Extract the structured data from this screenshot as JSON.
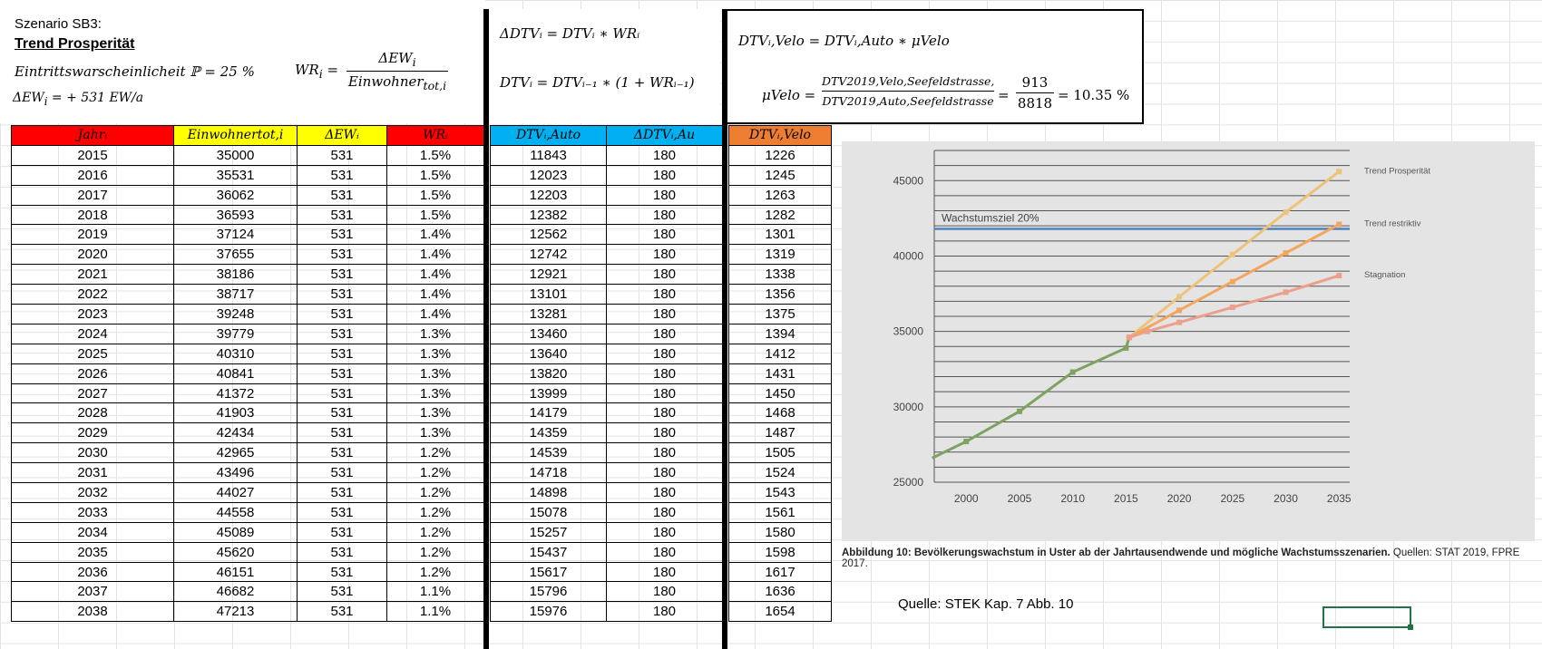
{
  "header": {
    "scenario": "Szenario SB3:",
    "title": "Trend Prosperität",
    "probability_text": "Eintrittswarscheinlicheit ℙ = 25 %",
    "delta_ew": "ΔEW",
    "delta_ew_sub": "i",
    "delta_ew_value": "= + 531 EW/a",
    "wr_lhs": "WR",
    "wr_lhs_sub": "i",
    "wr_num": "ΔEW",
    "wr_num_sub": "i",
    "wr_den": "Einwohner",
    "wr_den_sub": "tot,i"
  },
  "formula_mid": {
    "line1": "ΔDTVᵢ = DTVᵢ ∗ WRᵢ",
    "line2": "DTVᵢ = DTVᵢ₋₁ ∗ (1 + WRᵢ₋₁)"
  },
  "formula_box": {
    "line1": "DTVᵢ,Velo = DTVᵢ,Auto ∗ μVelo",
    "mu": "μVelo =",
    "num": "DTV2019,Velo,Seefeldstrasse,",
    "den": "DTV2019,Auto,Seefeldstrasse",
    "num2": "913",
    "den2": "8818",
    "result": "= 10.35 %"
  },
  "table": {
    "headers": {
      "jahr": "Jahrᵢ",
      "einwohner": "Einwohnertot,i",
      "dew": "ΔEWᵢ",
      "wr": "WRᵢ",
      "dtv_auto": "DTVᵢ,Auto",
      "ddtv": "ΔDTVᵢ,Au",
      "dtv_velo": "DTVᵢ,Velo"
    },
    "header_colors": {
      "jahr": "#ff0000",
      "einwohner": "#ffff00",
      "dew": "#ffff00",
      "wr": "#ff0000",
      "dtv_auto": "#00b0f0",
      "ddtv": "#00b0f0",
      "dtv_velo": "#ed7d31"
    },
    "rows": [
      [
        "2015",
        "35000",
        "531",
        "1.5%",
        "11843",
        "180",
        "1226"
      ],
      [
        "2016",
        "35531",
        "531",
        "1.5%",
        "12023",
        "180",
        "1245"
      ],
      [
        "2017",
        "36062",
        "531",
        "1.5%",
        "12203",
        "180",
        "1263"
      ],
      [
        "2018",
        "36593",
        "531",
        "1.5%",
        "12382",
        "180",
        "1282"
      ],
      [
        "2019",
        "37124",
        "531",
        "1.4%",
        "12562",
        "180",
        "1301"
      ],
      [
        "2020",
        "37655",
        "531",
        "1.4%",
        "12742",
        "180",
        "1319"
      ],
      [
        "2021",
        "38186",
        "531",
        "1.4%",
        "12921",
        "180",
        "1338"
      ],
      [
        "2022",
        "38717",
        "531",
        "1.4%",
        "13101",
        "180",
        "1356"
      ],
      [
        "2023",
        "39248",
        "531",
        "1.4%",
        "13281",
        "180",
        "1375"
      ],
      [
        "2024",
        "39779",
        "531",
        "1.3%",
        "13460",
        "180",
        "1394"
      ],
      [
        "2025",
        "40310",
        "531",
        "1.3%",
        "13640",
        "180",
        "1412"
      ],
      [
        "2026",
        "40841",
        "531",
        "1.3%",
        "13820",
        "180",
        "1431"
      ],
      [
        "2027",
        "41372",
        "531",
        "1.3%",
        "13999",
        "180",
        "1450"
      ],
      [
        "2028",
        "41903",
        "531",
        "1.3%",
        "14179",
        "180",
        "1468"
      ],
      [
        "2029",
        "42434",
        "531",
        "1.3%",
        "14359",
        "180",
        "1487"
      ],
      [
        "2030",
        "42965",
        "531",
        "1.2%",
        "14539",
        "180",
        "1505"
      ],
      [
        "2031",
        "43496",
        "531",
        "1.2%",
        "14718",
        "180",
        "1524"
      ],
      [
        "2032",
        "44027",
        "531",
        "1.2%",
        "14898",
        "180",
        "1543"
      ],
      [
        "2033",
        "44558",
        "531",
        "1.2%",
        "15078",
        "180",
        "1561"
      ],
      [
        "2034",
        "45089",
        "531",
        "1.2%",
        "15257",
        "180",
        "1580"
      ],
      [
        "2035",
        "45620",
        "531",
        "1.2%",
        "15437",
        "180",
        "1598"
      ],
      [
        "2036",
        "46151",
        "531",
        "1.2%",
        "15617",
        "180",
        "1617"
      ],
      [
        "2037",
        "46682",
        "531",
        "1.1%",
        "15796",
        "180",
        "1636"
      ],
      [
        "2038",
        "47213",
        "531",
        "1.1%",
        "15976",
        "180",
        "1654"
      ]
    ]
  },
  "chart_data": {
    "type": "line",
    "title": "",
    "xlabel": "",
    "ylabel": "",
    "xlim": [
      1997,
      2036
    ],
    "ylim": [
      25000,
      47000
    ],
    "x_ticks": [
      "2000",
      "2005",
      "2010",
      "2015",
      "2020",
      "2025",
      "2030",
      "2035"
    ],
    "y_ticks": [
      "25000",
      "30000",
      "35000",
      "40000",
      "45000"
    ],
    "grid": true,
    "series": [
      {
        "name": "",
        "color": "#7ea261",
        "points": [
          [
            1996.8,
            26600
          ],
          [
            2000,
            27700
          ],
          [
            2005,
            29700
          ],
          [
            2010,
            32300
          ],
          [
            2015,
            33900
          ],
          [
            2015.3,
            34600
          ]
        ]
      },
      {
        "name": "Trend Prosperität",
        "color": "#eec27a",
        "points": [
          [
            2015.3,
            34600
          ],
          [
            2020,
            37300
          ],
          [
            2025,
            40100
          ],
          [
            2030,
            42900
          ],
          [
            2035,
            45600
          ]
        ]
      },
      {
        "name": "Trend restriktiv",
        "color": "#f2a65e",
        "points": [
          [
            2015.3,
            34600
          ],
          [
            2020,
            36400
          ],
          [
            2025,
            38300
          ],
          [
            2030,
            40200
          ],
          [
            2035,
            42100
          ]
        ]
      },
      {
        "name": "Stagnation",
        "color": "#ec9f8b",
        "points": [
          [
            2015.3,
            34600
          ],
          [
            2017,
            35000
          ],
          [
            2020,
            35600
          ],
          [
            2025,
            36600
          ],
          [
            2030,
            37600
          ],
          [
            2035,
            38700
          ]
        ]
      }
    ],
    "reference_line": {
      "label": "Wachstumsziel 20%",
      "y": 41800,
      "color": "#4f81bd"
    }
  },
  "caption": {
    "bold": "Abbildung 10: Bevölkerungswachstum in Uster ab der Jahrtausendwende und mögliche Wachstumsszenarien.",
    "rest": " Quellen: STAT 2019, FPRE 2017."
  },
  "source": "Quelle: STEK Kap. 7 Abb. 10"
}
